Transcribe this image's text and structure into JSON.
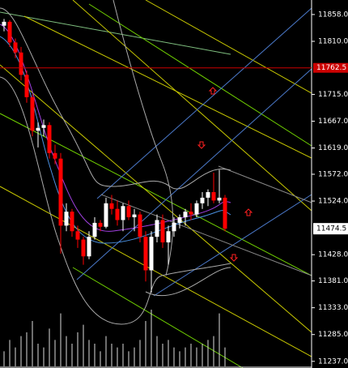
{
  "chart_data": {
    "type": "candlestick",
    "ylim": [
      11228,
      11884
    ],
    "yticks": [
      {
        "value": 11858,
        "label": "11858.0"
      },
      {
        "value": 11810,
        "label": "11810.0"
      },
      {
        "value": 11715,
        "label": "11715.0"
      },
      {
        "value": 11667,
        "label": "11667.0"
      },
      {
        "value": 11619,
        "label": "11619.0"
      },
      {
        "value": 11572,
        "label": "11572.0"
      },
      {
        "value": 11524,
        "label": "11524.0"
      },
      {
        "value": 11428,
        "label": "11428.0"
      },
      {
        "value": 11381,
        "label": "11381.0"
      },
      {
        "value": 11333,
        "label": "11333.0"
      },
      {
        "value": 11285,
        "label": "11285.0"
      },
      {
        "value": 11237,
        "label": "11237.0"
      }
    ],
    "level_line": {
      "value": 11762.5,
      "label": "11762.5",
      "color": "#cc0000"
    },
    "last_price": {
      "value": 11474.5,
      "label": "11474.5"
    },
    "up_color": "#ffffff",
    "down_color": "#ff0000",
    "open": [
      11838,
      11845,
      11808,
      11790,
      11750,
      11710,
      11650,
      11655,
      11660,
      11610,
      11600,
      11480,
      11505,
      11470,
      11455,
      11425,
      11460,
      11485,
      11478,
      11520,
      11510,
      11490,
      11515,
      11495,
      11500,
      11460,
      11400,
      11460,
      11490,
      11450,
      11470,
      11485,
      11495,
      11505,
      11500,
      11520,
      11530,
      11540,
      11525,
      11530
    ],
    "high": [
      11850,
      11848,
      11815,
      11800,
      11758,
      11715,
      11665,
      11670,
      11665,
      11625,
      11610,
      11520,
      11510,
      11480,
      11460,
      11470,
      11495,
      11490,
      11530,
      11535,
      11525,
      11520,
      11525,
      11510,
      11505,
      11470,
      11470,
      11500,
      11500,
      11480,
      11495,
      11500,
      11510,
      11520,
      11525,
      11540,
      11545,
      11575,
      11580,
      11535
    ],
    "low": [
      11828,
      11800,
      11780,
      11740,
      11700,
      11640,
      11620,
      11640,
      11600,
      11590,
      11430,
      11470,
      11460,
      11440,
      11410,
      11420,
      11455,
      11470,
      11475,
      11500,
      11480,
      11470,
      11490,
      11470,
      11450,
      11380,
      11360,
      11450,
      11440,
      11410,
      11460,
      11475,
      11480,
      11490,
      11495,
      11510,
      11515,
      11520,
      11520,
      11470
    ],
    "close": [
      11845,
      11808,
      11790,
      11750,
      11710,
      11650,
      11655,
      11660,
      11610,
      11600,
      11480,
      11505,
      11470,
      11455,
      11425,
      11460,
      11485,
      11478,
      11520,
      11510,
      11490,
      11515,
      11495,
      11500,
      11460,
      11400,
      11460,
      11490,
      11450,
      11470,
      11485,
      11495,
      11505,
      11500,
      11520,
      11530,
      11540,
      11525,
      11530,
      11474.5
    ],
    "volume": [
      20,
      35,
      25,
      40,
      45,
      60,
      30,
      25,
      50,
      35,
      70,
      40,
      30,
      45,
      55,
      35,
      30,
      20,
      40,
      30,
      25,
      30,
      20,
      25,
      35,
      60,
      75,
      40,
      30,
      35,
      25,
      20,
      25,
      30,
      25,
      30,
      35,
      40,
      70,
      25
    ]
  }
}
